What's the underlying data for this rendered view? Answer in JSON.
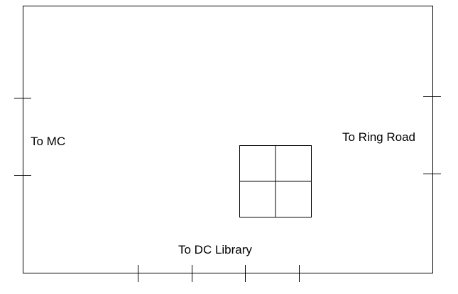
{
  "labels": {
    "west_exit": "To MC",
    "east_exit": "To Ring Road",
    "south_exit": "To DC Library"
  },
  "colors": {
    "stroke": "#000000",
    "background": "#ffffff"
  }
}
